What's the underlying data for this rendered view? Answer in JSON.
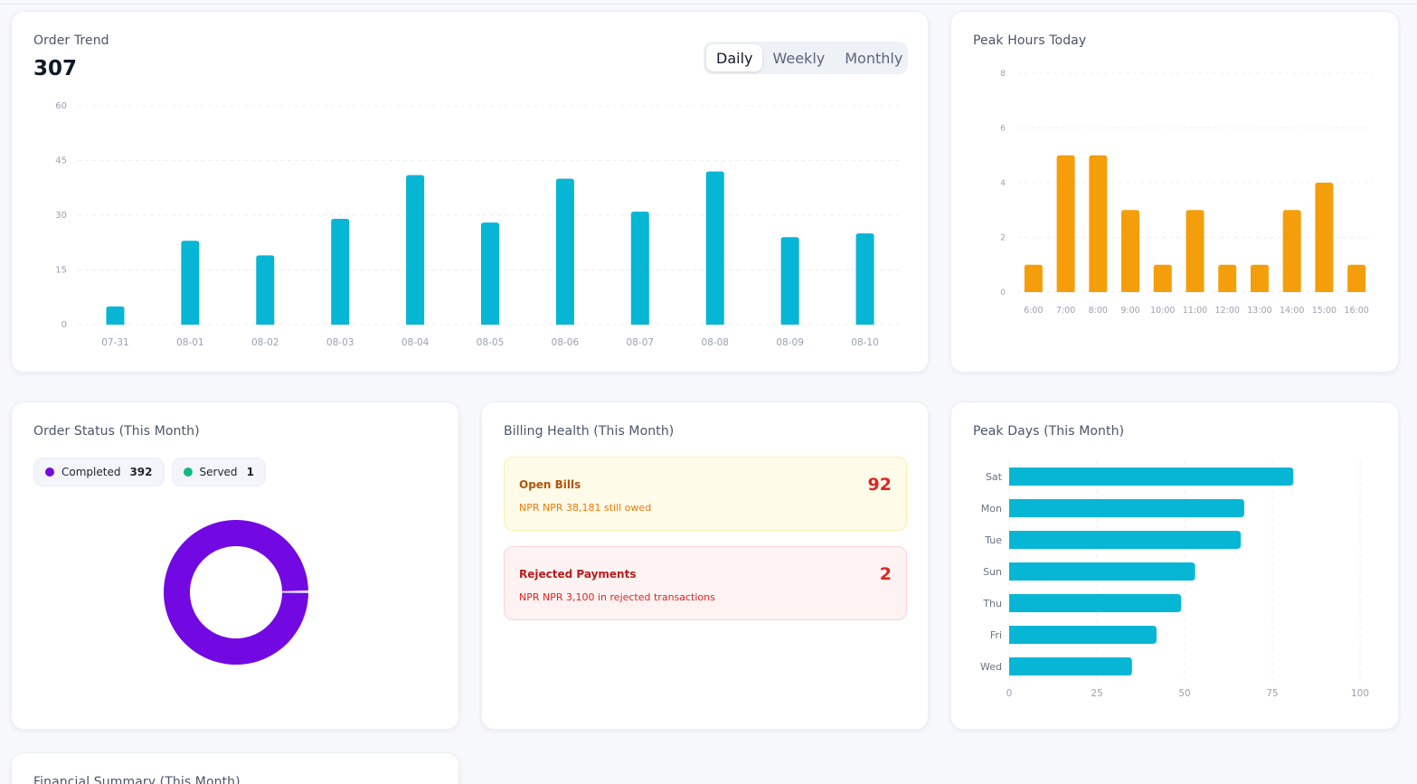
{
  "order_trend": {
    "title": "Order Trend",
    "total": "307",
    "tabs": [
      {
        "label": "Daily",
        "active": true
      },
      {
        "label": "Weekly",
        "active": false
      },
      {
        "label": "Monthly",
        "active": false
      }
    ],
    "chart_data": {
      "type": "bar",
      "categories": [
        "07-31",
        "08-01",
        "08-02",
        "08-03",
        "08-04",
        "08-05",
        "08-06",
        "08-07",
        "08-08",
        "08-09",
        "08-10"
      ],
      "values": [
        5,
        23,
        19,
        29,
        41,
        28,
        40,
        31,
        42,
        24,
        25
      ],
      "yticks": [
        0,
        15,
        30,
        45,
        60
      ],
      "ylim": [
        0,
        60
      ],
      "grid": true,
      "color": "#06b6d4"
    }
  },
  "peak_hours": {
    "title": "Peak Hours Today",
    "chart_data": {
      "type": "bar",
      "categories": [
        "6:00",
        "7:00",
        "8:00",
        "9:00",
        "10:00",
        "11:00",
        "12:00",
        "13:00",
        "14:00",
        "15:00",
        "16:00"
      ],
      "values": [
        1,
        5,
        5,
        3,
        1,
        3,
        1,
        1,
        3,
        4,
        1
      ],
      "yticks": [
        0,
        2,
        4,
        6,
        8
      ],
      "ylim": [
        0,
        8
      ],
      "grid": true,
      "color": "#f59e0b"
    }
  },
  "order_status": {
    "title": "Order Status (This Month)",
    "legend": [
      {
        "label": "Completed",
        "count": "392",
        "color": "#7209e3"
      },
      {
        "label": "Served",
        "count": "1",
        "color": "#10b981"
      }
    ],
    "chart_data": {
      "type": "pie",
      "labels": [
        "Completed",
        "Served"
      ],
      "values": [
        392,
        1
      ],
      "colors": [
        "#7209e3",
        "#10b981"
      ]
    }
  },
  "billing": {
    "title": "Billing Health (This Month)",
    "open": {
      "label": "Open Bills",
      "count": "92",
      "sub": "NPR NPR 38,181 still owed"
    },
    "rejected": {
      "label": "Rejected Payments",
      "count": "2",
      "sub": "NPR NPR 3,100 in rejected transactions"
    }
  },
  "peak_days": {
    "title": "Peak Days (This Month)",
    "chart_data": {
      "type": "bar",
      "orientation": "horizontal",
      "categories": [
        "Sat",
        "Mon",
        "Tue",
        "Sun",
        "Thu",
        "Fri",
        "Wed"
      ],
      "values": [
        81,
        67,
        66,
        53,
        49,
        42,
        35
      ],
      "xticks": [
        0,
        25,
        50,
        75,
        100
      ],
      "xlim": [
        0,
        100
      ],
      "grid": true,
      "color": "#06b6d4"
    }
  },
  "financial": {
    "title": "Financial Summary (This Month)"
  }
}
